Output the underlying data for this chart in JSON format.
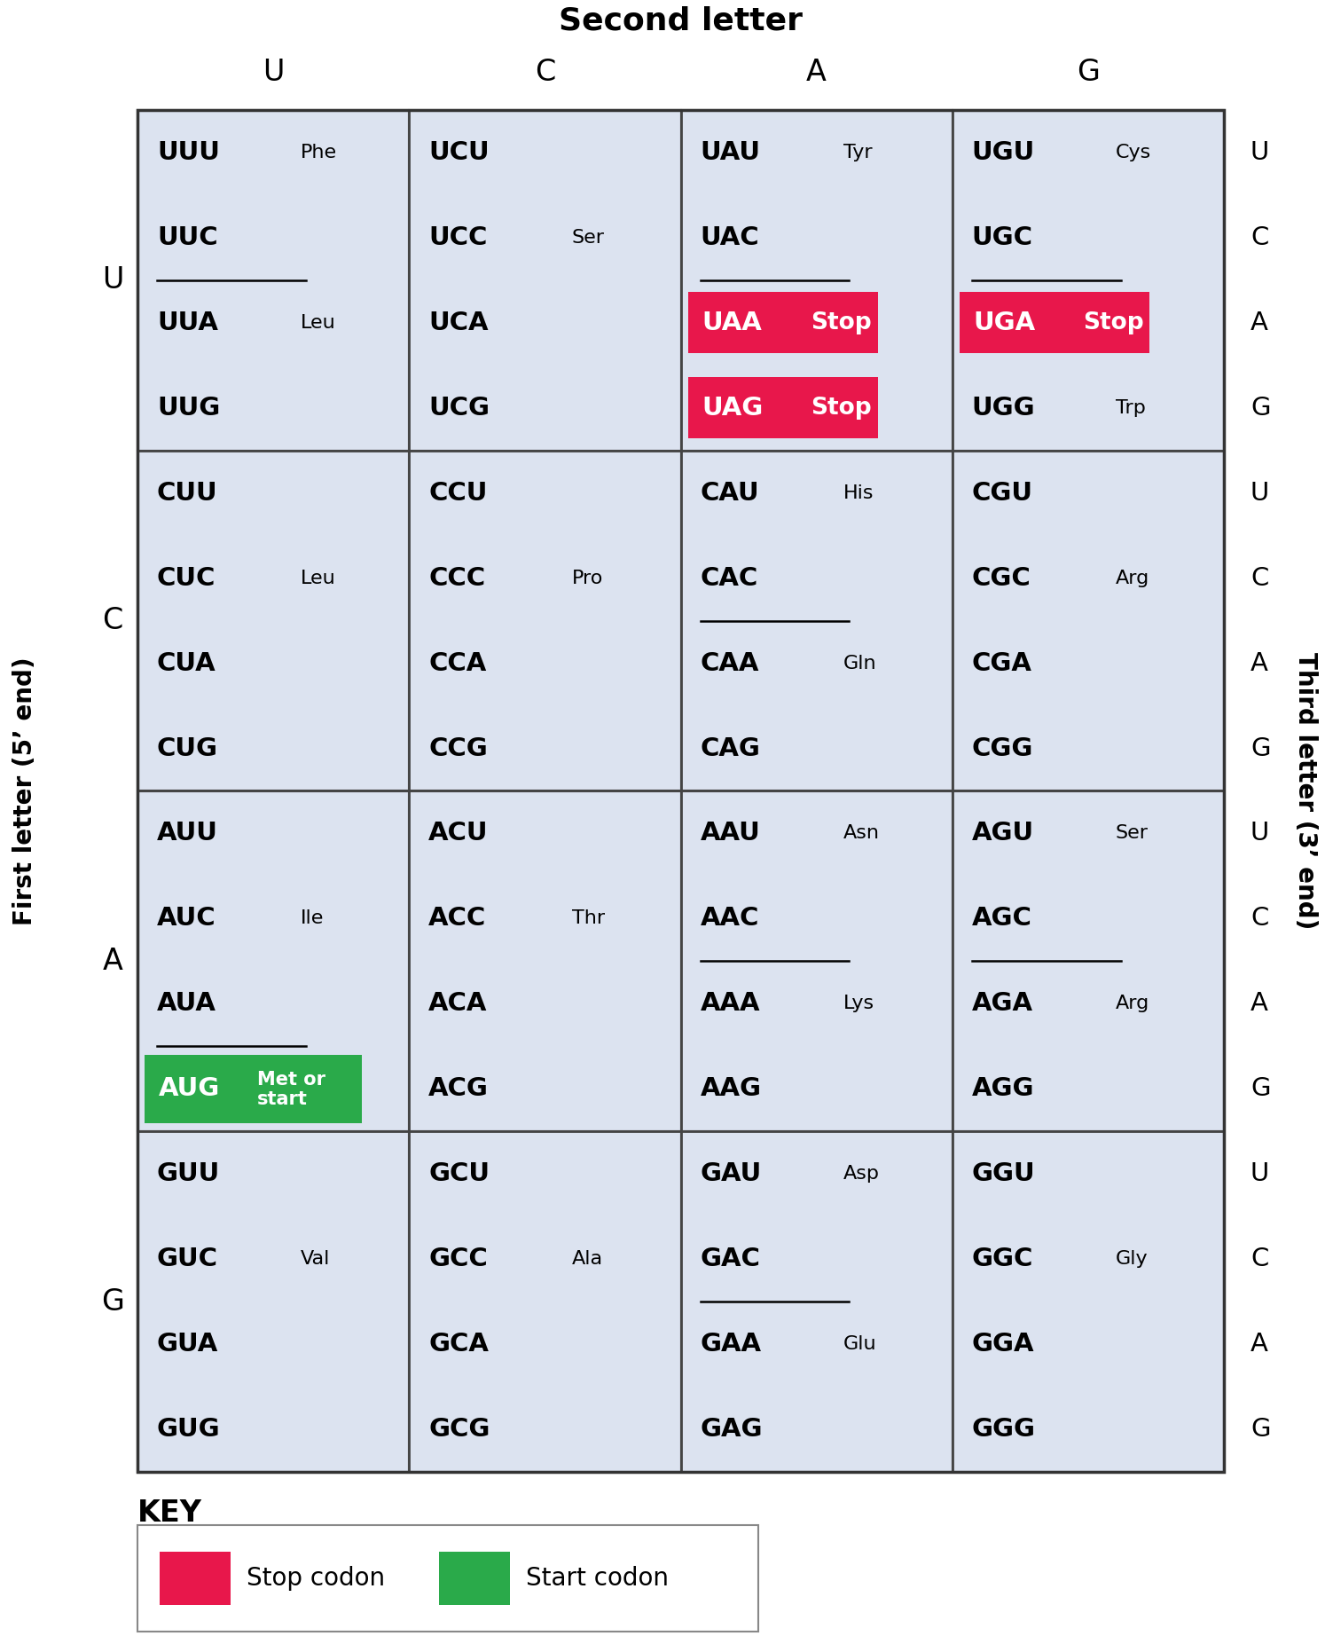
{
  "title_top": "Second letter",
  "title_left": "First letter (5’ end)",
  "title_right": "Third letter (3’ end)",
  "col_headers": [
    "U",
    "C",
    "A",
    "G"
  ],
  "row_headers": [
    "U",
    "C",
    "A",
    "G"
  ],
  "third_letters": [
    "U",
    "C",
    "A",
    "G"
  ],
  "cell_bg": "#dce3f0",
  "stop_color": "#e8174b",
  "start_color": "#2aaa4a",
  "cells": [
    {
      "row": 0,
      "col": 0,
      "codons": [
        "UUU",
        "UUC",
        "UUA",
        "UUG"
      ],
      "specials": [
        "",
        "",
        "",
        ""
      ],
      "aa_label": "Phe",
      "aa_idx": 0,
      "aa_right": true,
      "aa_label2": "Leu",
      "aa_idx2": 2,
      "aa_right2": true,
      "underline_after": 1
    },
    {
      "row": 0,
      "col": 1,
      "codons": [
        "UCU",
        "UCC",
        "UCA",
        "UCG"
      ],
      "specials": [
        "",
        "",
        "",
        ""
      ],
      "aa_label": "Ser",
      "aa_idx": 1,
      "aa_right": true,
      "aa_label2": "",
      "aa_idx2": -1,
      "aa_right2": false,
      "underline_after": -1
    },
    {
      "row": 0,
      "col": 2,
      "codons": [
        "UAU",
        "UAC",
        "UAA",
        "UAG"
      ],
      "specials": [
        "",
        "",
        "stop",
        "stop"
      ],
      "aa_label": "Tyr",
      "aa_idx": 0,
      "aa_right": true,
      "aa_label2": "",
      "aa_idx2": -1,
      "aa_right2": false,
      "underline_after": 1
    },
    {
      "row": 0,
      "col": 3,
      "codons": [
        "UGU",
        "UGC",
        "UGA",
        "UGG"
      ],
      "specials": [
        "",
        "",
        "stop",
        ""
      ],
      "aa_label": "Cys",
      "aa_idx": 0,
      "aa_right": true,
      "aa_label2": "Trp",
      "aa_idx2": 3,
      "aa_right2": true,
      "underline_after": 1
    },
    {
      "row": 1,
      "col": 0,
      "codons": [
        "CUU",
        "CUC",
        "CUA",
        "CUG"
      ],
      "specials": [
        "",
        "",
        "",
        ""
      ],
      "aa_label": "Leu",
      "aa_idx": 1,
      "aa_right": true,
      "aa_label2": "",
      "aa_idx2": -1,
      "aa_right2": false,
      "underline_after": -1
    },
    {
      "row": 1,
      "col": 1,
      "codons": [
        "CCU",
        "CCC",
        "CCA",
        "CCG"
      ],
      "specials": [
        "",
        "",
        "",
        ""
      ],
      "aa_label": "Pro",
      "aa_idx": 1,
      "aa_right": true,
      "aa_label2": "",
      "aa_idx2": -1,
      "aa_right2": false,
      "underline_after": -1
    },
    {
      "row": 1,
      "col": 2,
      "codons": [
        "CAU",
        "CAC",
        "CAA",
        "CAG"
      ],
      "specials": [
        "",
        "",
        "",
        ""
      ],
      "aa_label": "His",
      "aa_idx": 0,
      "aa_right": true,
      "aa_label2": "Gln",
      "aa_idx2": 2,
      "aa_right2": true,
      "underline_after": 1
    },
    {
      "row": 1,
      "col": 3,
      "codons": [
        "CGU",
        "CGC",
        "CGA",
        "CGG"
      ],
      "specials": [
        "",
        "",
        "",
        ""
      ],
      "aa_label": "Arg",
      "aa_idx": 1,
      "aa_right": true,
      "aa_label2": "",
      "aa_idx2": -1,
      "aa_right2": false,
      "underline_after": -1
    },
    {
      "row": 2,
      "col": 0,
      "codons": [
        "AUU",
        "AUC",
        "AUA",
        "AUG"
      ],
      "specials": [
        "",
        "",
        "",
        "start"
      ],
      "aa_label": "Ile",
      "aa_idx": 1,
      "aa_right": true,
      "aa_label2": "",
      "aa_idx2": -1,
      "aa_right2": false,
      "underline_after": 2
    },
    {
      "row": 2,
      "col": 1,
      "codons": [
        "ACU",
        "ACC",
        "ACA",
        "ACG"
      ],
      "specials": [
        "",
        "",
        "",
        ""
      ],
      "aa_label": "Thr",
      "aa_idx": 1,
      "aa_right": true,
      "aa_label2": "",
      "aa_idx2": -1,
      "aa_right2": false,
      "underline_after": -1
    },
    {
      "row": 2,
      "col": 2,
      "codons": [
        "AAU",
        "AAC",
        "AAA",
        "AAG"
      ],
      "specials": [
        "",
        "",
        "",
        ""
      ],
      "aa_label": "Asn",
      "aa_idx": 0,
      "aa_right": true,
      "aa_label2": "Lys",
      "aa_idx2": 2,
      "aa_right2": true,
      "underline_after": 1
    },
    {
      "row": 2,
      "col": 3,
      "codons": [
        "AGU",
        "AGC",
        "AGA",
        "AGG"
      ],
      "specials": [
        "",
        "",
        "",
        ""
      ],
      "aa_label": "Ser",
      "aa_idx": 0,
      "aa_right": true,
      "aa_label2": "Arg",
      "aa_idx2": 2,
      "aa_right2": true,
      "underline_after": 1
    },
    {
      "row": 3,
      "col": 0,
      "codons": [
        "GUU",
        "GUC",
        "GUA",
        "GUG"
      ],
      "specials": [
        "",
        "",
        "",
        ""
      ],
      "aa_label": "Val",
      "aa_idx": 1,
      "aa_right": true,
      "aa_label2": "",
      "aa_idx2": -1,
      "aa_right2": false,
      "underline_after": -1
    },
    {
      "row": 3,
      "col": 1,
      "codons": [
        "GCU",
        "GCC",
        "GCA",
        "GCG"
      ],
      "specials": [
        "",
        "",
        "",
        ""
      ],
      "aa_label": "Ala",
      "aa_idx": 1,
      "aa_right": true,
      "aa_label2": "",
      "aa_idx2": -1,
      "aa_right2": false,
      "underline_after": -1
    },
    {
      "row": 3,
      "col": 2,
      "codons": [
        "GAU",
        "GAC",
        "GAA",
        "GAG"
      ],
      "specials": [
        "",
        "",
        "",
        ""
      ],
      "aa_label": "Asp",
      "aa_idx": 0,
      "aa_right": true,
      "aa_label2": "Glu",
      "aa_idx2": 2,
      "aa_right2": true,
      "underline_after": 1
    },
    {
      "row": 3,
      "col": 3,
      "codons": [
        "GGU",
        "GGC",
        "GGA",
        "GGG"
      ],
      "specials": [
        "",
        "",
        "",
        ""
      ],
      "aa_label": "Gly",
      "aa_idx": 1,
      "aa_right": true,
      "aa_label2": "",
      "aa_idx2": -1,
      "aa_right2": false,
      "underline_after": -1
    }
  ],
  "key_stop_color": "#e8174b",
  "key_start_color": "#2aaa4a",
  "key_stop_label": "Stop codon",
  "key_start_label": "Start codon",
  "key_label": "KEY"
}
